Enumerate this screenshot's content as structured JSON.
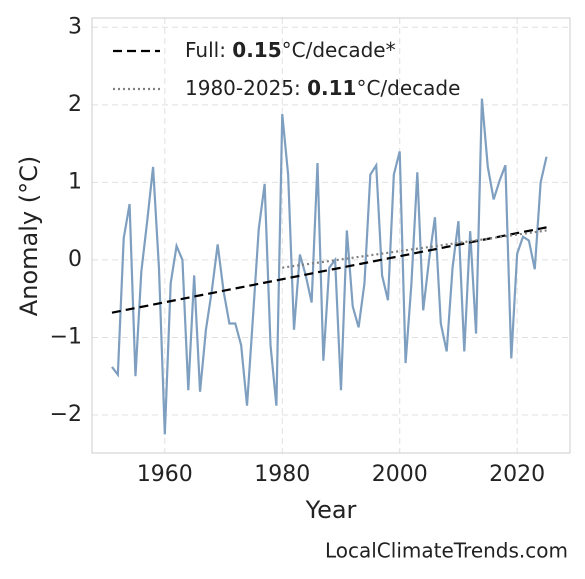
{
  "chart_data": {
    "type": "line",
    "xlabel": "Year",
    "ylabel": "Anomaly (°C)",
    "watermark": "LocalClimateTrends.com",
    "x": [
      1951,
      1952,
      1953,
      1954,
      1955,
      1956,
      1957,
      1958,
      1959,
      1960,
      1961,
      1962,
      1963,
      1964,
      1965,
      1966,
      1967,
      1968,
      1969,
      1970,
      1971,
      1972,
      1973,
      1974,
      1975,
      1976,
      1977,
      1978,
      1979,
      1980,
      1981,
      1982,
      1983,
      1984,
      1985,
      1986,
      1987,
      1988,
      1989,
      1990,
      1991,
      1992,
      1993,
      1994,
      1995,
      1996,
      1997,
      1998,
      1999,
      2000,
      2001,
      2002,
      2003,
      2004,
      2005,
      2006,
      2007,
      2008,
      2009,
      2010,
      2011,
      2012,
      2013,
      2014,
      2015,
      2016,
      2017,
      2018,
      2019,
      2020,
      2021,
      2022,
      2023,
      2024,
      2025
    ],
    "series": [
      {
        "color": "#7f9fc0",
        "values": [
          -1.38,
          -1.48,
          0.28,
          0.72,
          -1.5,
          -0.15,
          0.5,
          1.2,
          -0.1,
          -2.25,
          -0.3,
          0.18,
          0.0,
          -1.68,
          -0.2,
          -1.7,
          -0.9,
          -0.4,
          0.2,
          -0.4,
          -0.82,
          -0.82,
          -1.1,
          -1.88,
          -0.75,
          0.4,
          0.98,
          -1.1,
          -1.88,
          1.88,
          1.1,
          -0.9,
          0.07,
          -0.2,
          -0.55,
          1.25,
          -1.3,
          -0.1,
          0.0,
          -1.68,
          0.38,
          -0.6,
          -0.87,
          -0.3,
          1.1,
          1.22,
          -0.2,
          -0.52,
          1.1,
          1.4,
          -1.33,
          -0.3,
          1.13,
          -0.65,
          0.0,
          0.55,
          -0.82,
          -1.18,
          -0.1,
          0.5,
          -1.18,
          0.37,
          -0.95,
          2.08,
          1.2,
          0.78,
          1.02,
          1.22,
          -1.27,
          0.08,
          0.3,
          0.25,
          -0.12,
          1.0,
          1.33
        ]
      }
    ],
    "trends": [
      {
        "label": {
          "prefix": "Full: ",
          "slope": 0.15,
          "suffix": "°C/decade*"
        },
        "color": "#000000",
        "dash": "dashed",
        "x": [
          1951,
          2025
        ],
        "values": [
          -0.68,
          0.42
        ]
      },
      {
        "label": {
          "prefix": "1980-2025: ",
          "slope": 0.11,
          "suffix": "°C/decade"
        },
        "color": "#808080",
        "dash": "dotted",
        "x": [
          1980,
          2025
        ],
        "values": [
          -0.1,
          0.38
        ]
      }
    ],
    "xlim": [
      1947.6,
      2029
    ],
    "ylim": [
      -2.49,
      3.12
    ],
    "xticks": [
      1960,
      1980,
      2000,
      2020
    ],
    "yticks": [
      {
        "value": -2,
        "label": "−2"
      },
      {
        "value": -1,
        "label": "−1"
      },
      0,
      1,
      2,
      3
    ],
    "grid": true,
    "legend": "upper left"
  }
}
